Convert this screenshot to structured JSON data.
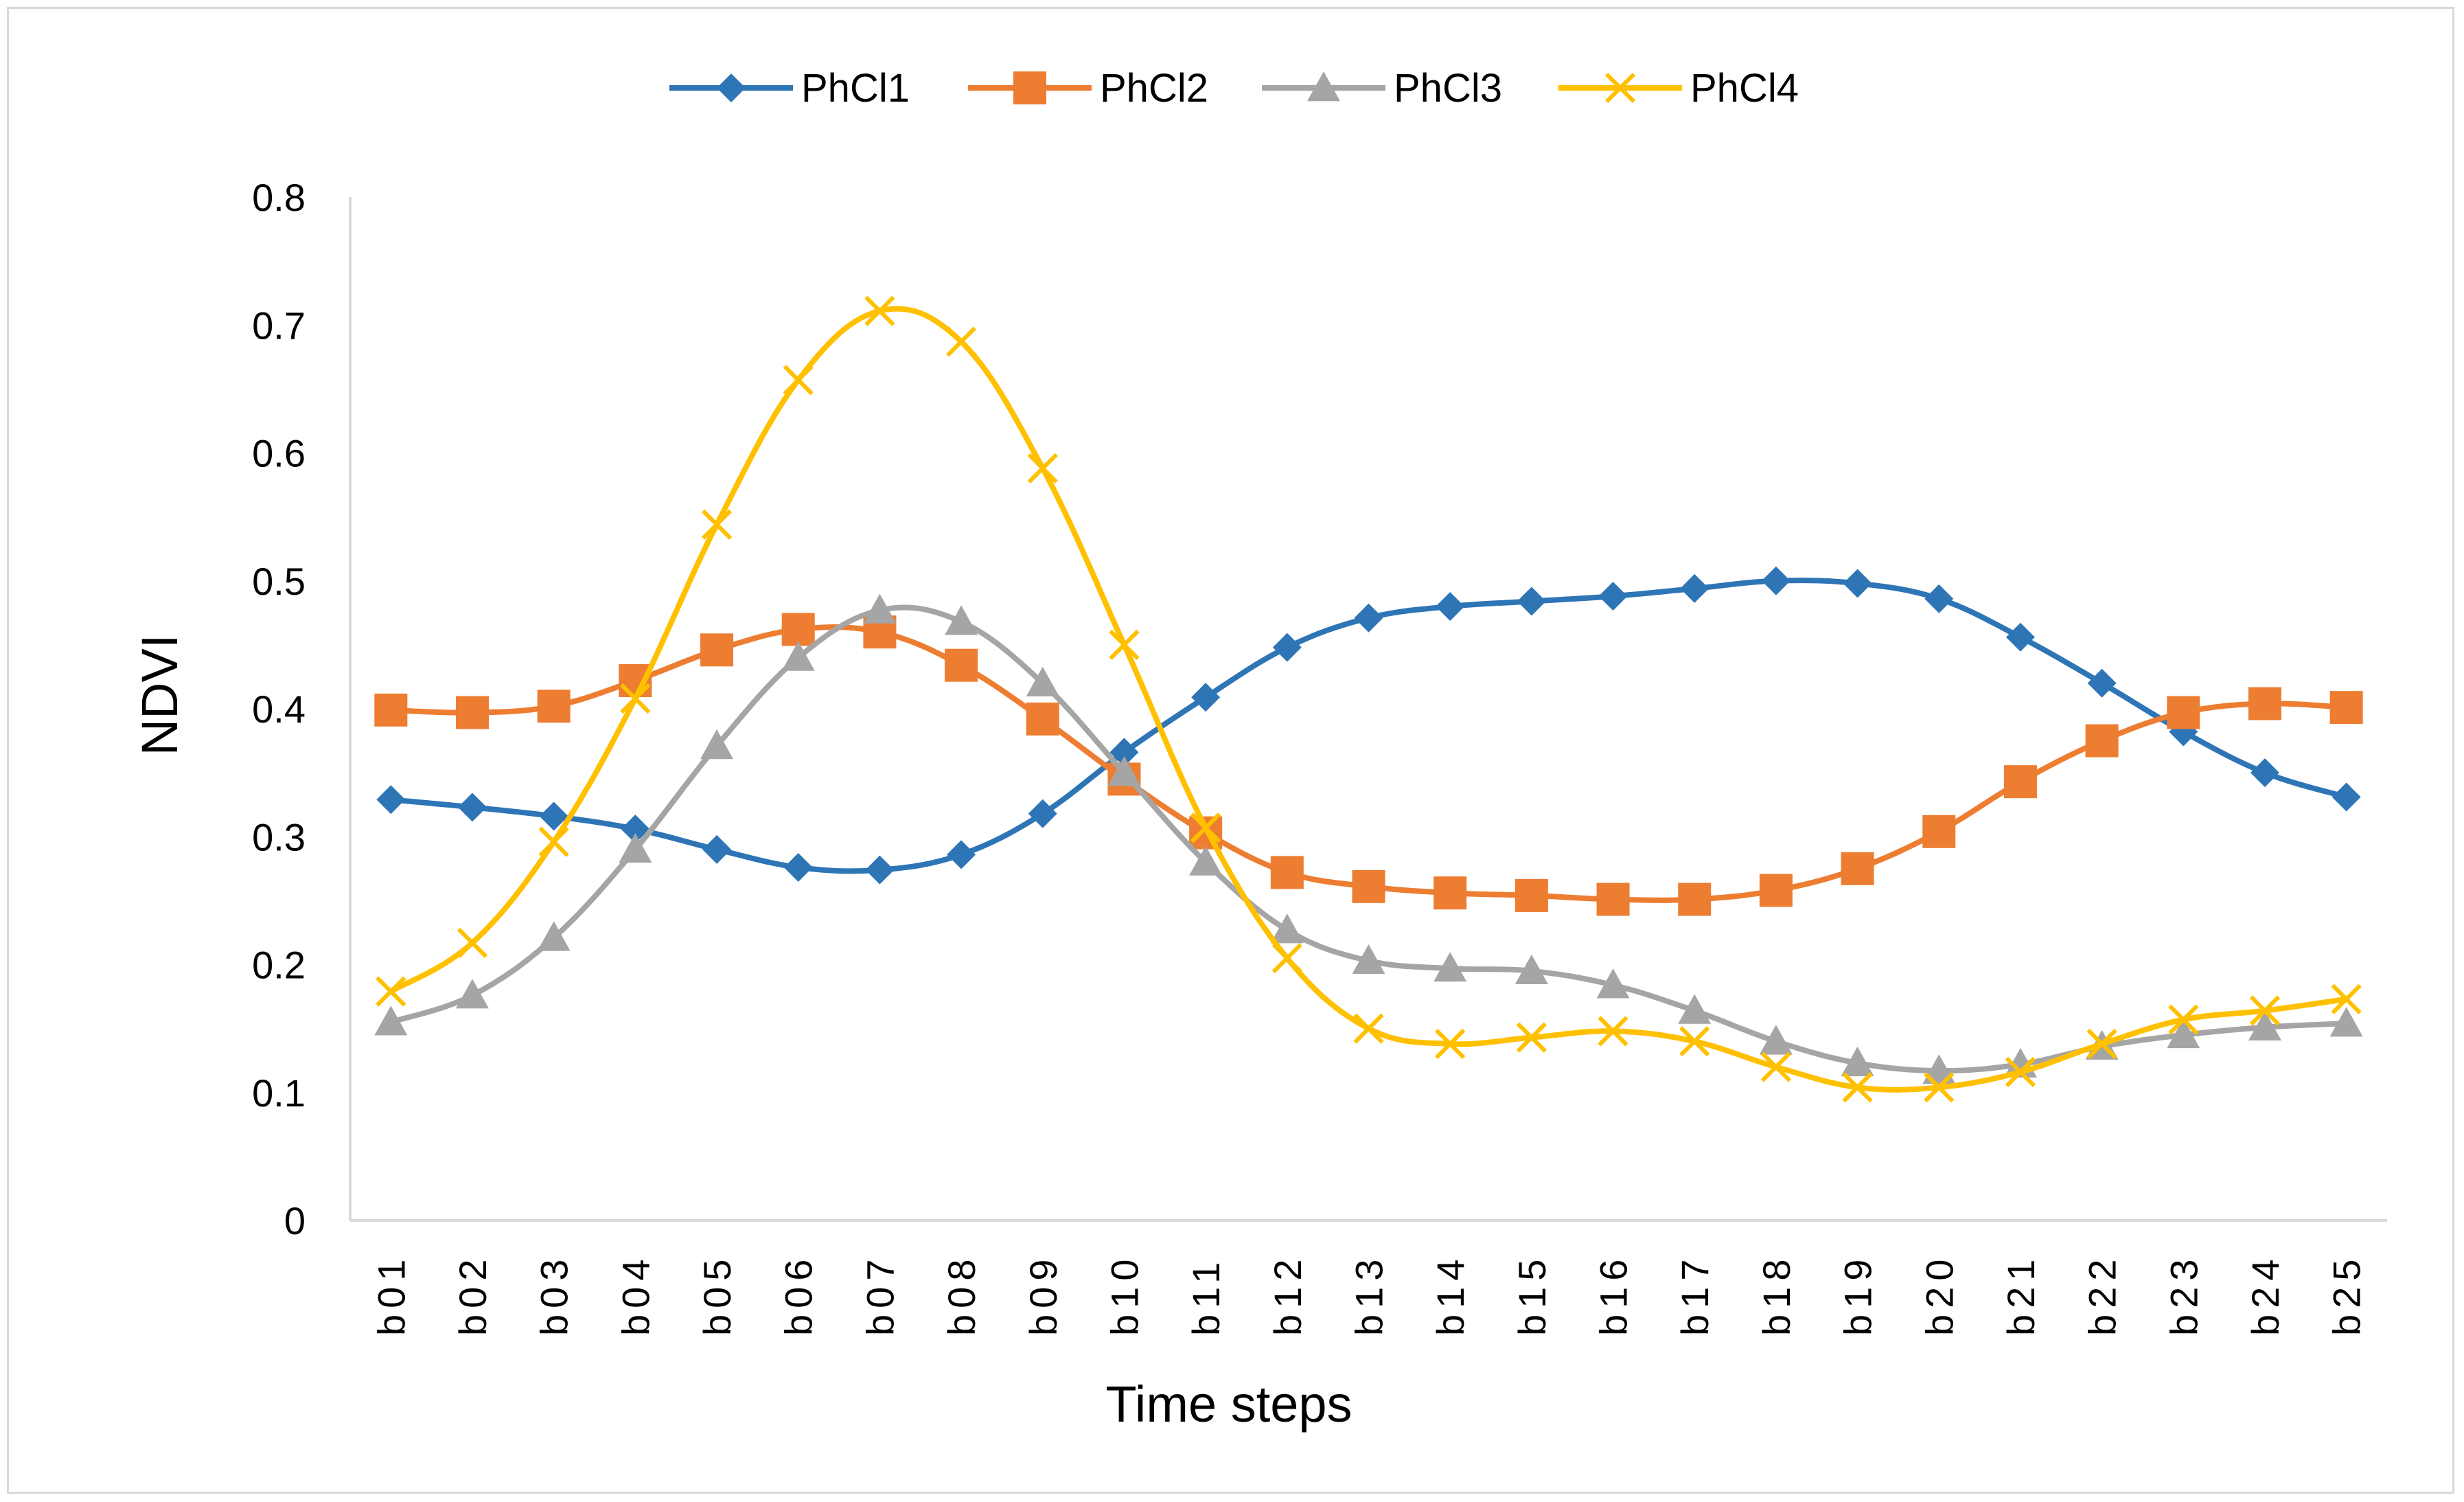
{
  "chart_data": {
    "type": "line",
    "title": "",
    "xlabel": "Time steps",
    "ylabel": "NDVI",
    "ylim": [
      0,
      0.8
    ],
    "yticks": [
      0,
      0.1,
      0.2,
      0.3,
      0.4,
      0.5,
      0.6,
      0.7,
      0.8
    ],
    "ytick_labels": [
      "0",
      "0.1",
      "0.2",
      "0.3",
      "0.4",
      "0.5",
      "0.6",
      "0.7",
      "0.8"
    ],
    "grid": false,
    "legend_position": "top-center",
    "categories": [
      "b01",
      "b02",
      "b03",
      "b04",
      "b05",
      "b06",
      "b07",
      "b08",
      "b09",
      "b10",
      "b11",
      "b12",
      "b13",
      "b14",
      "b15",
      "b16",
      "b17",
      "b18",
      "b19",
      "b20",
      "b21",
      "b22",
      "b23",
      "b24",
      "b25"
    ],
    "series": [
      {
        "name": "PhCl1",
        "color": "#2e75b6",
        "marker": "diamond",
        "values": [
          0.329,
          0.323,
          0.316,
          0.306,
          0.29,
          0.276,
          0.274,
          0.286,
          0.318,
          0.366,
          0.409,
          0.448,
          0.471,
          0.48,
          0.484,
          0.488,
          0.494,
          0.5,
          0.498,
          0.486,
          0.456,
          0.42,
          0.382,
          0.35,
          0.331
        ]
      },
      {
        "name": "PhCl2",
        "color": "#ed7d31",
        "marker": "square",
        "values": [
          0.399,
          0.397,
          0.402,
          0.422,
          0.446,
          0.462,
          0.46,
          0.434,
          0.392,
          0.345,
          0.303,
          0.272,
          0.261,
          0.256,
          0.254,
          0.251,
          0.251,
          0.258,
          0.275,
          0.304,
          0.343,
          0.375,
          0.397,
          0.404,
          0.401
        ]
      },
      {
        "name": "PhCl3",
        "color": "#a5a5a5",
        "marker": "triangle",
        "values": [
          0.155,
          0.176,
          0.221,
          0.29,
          0.371,
          0.44,
          0.477,
          0.468,
          0.42,
          0.35,
          0.28,
          0.227,
          0.203,
          0.197,
          0.195,
          0.184,
          0.164,
          0.14,
          0.123,
          0.117,
          0.122,
          0.136,
          0.145,
          0.151,
          0.154
        ]
      },
      {
        "name": "PhCl4",
        "color": "#ffc000",
        "marker": "x",
        "values": [
          0.179,
          0.217,
          0.296,
          0.408,
          0.544,
          0.657,
          0.711,
          0.687,
          0.588,
          0.45,
          0.307,
          0.205,
          0.15,
          0.138,
          0.143,
          0.148,
          0.14,
          0.12,
          0.104,
          0.104,
          0.116,
          0.138,
          0.157,
          0.164,
          0.173
        ]
      }
    ]
  }
}
